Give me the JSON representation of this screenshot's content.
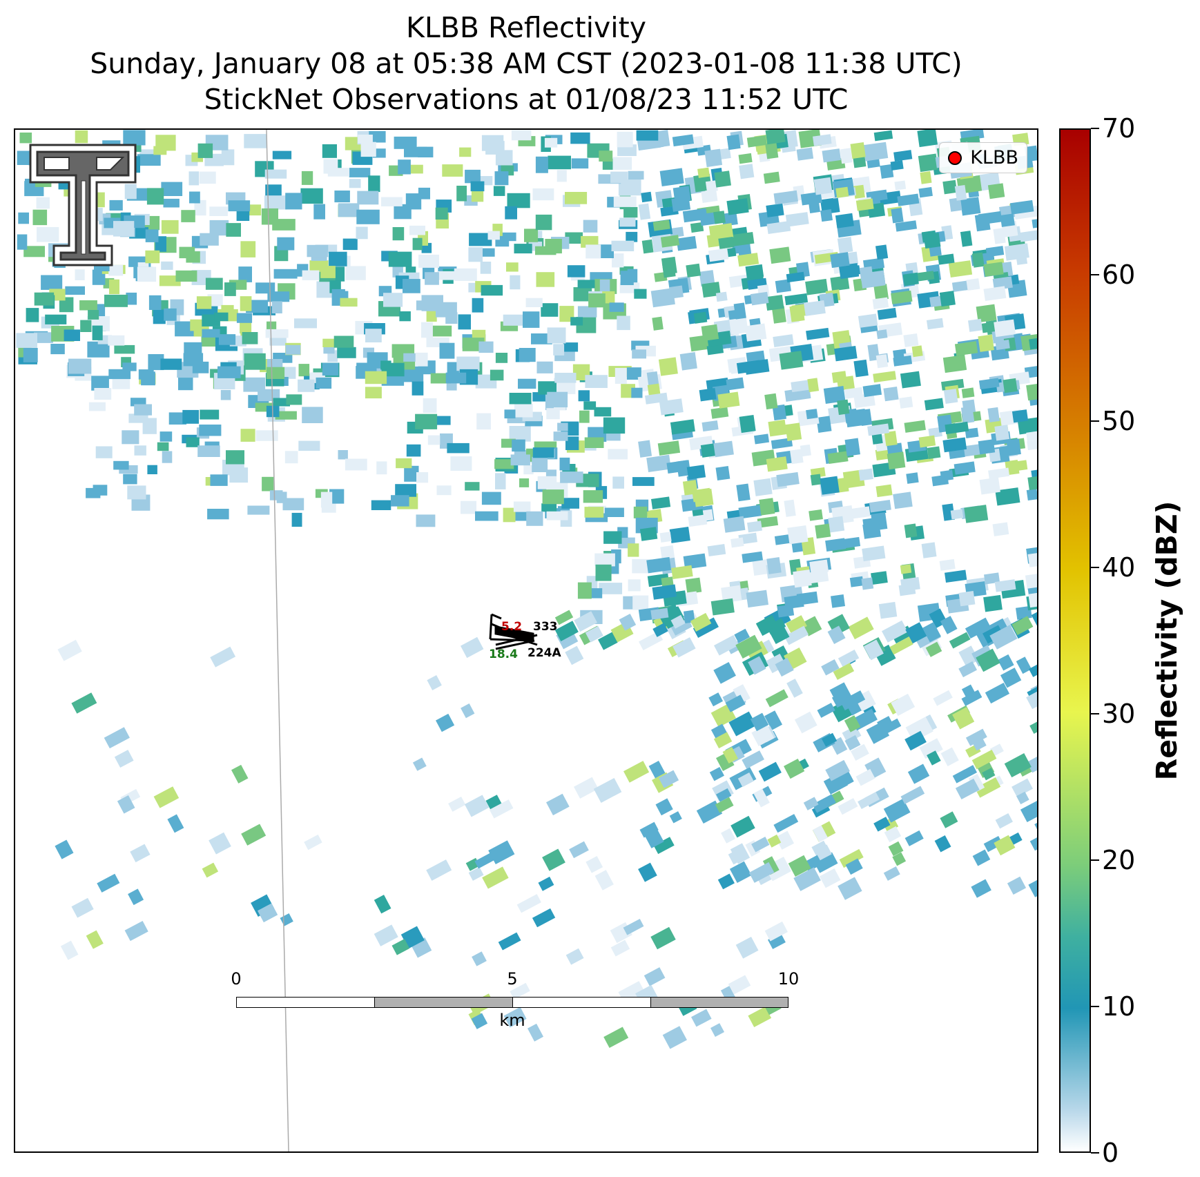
{
  "title": {
    "line1": "KLBB Reflectivity",
    "line2": "Sunday, January 08 at 05:38 AM CST (2023-01-08 11:38 UTC)",
    "line3": "StickNet Observations at 01/08/23 11:52 UTC"
  },
  "legend": {
    "label": "KLBB",
    "marker_color": "#ff0000"
  },
  "logo": {
    "icon": "texas-tech-double-t-logo"
  },
  "stations": [
    {
      "id": "333",
      "value": "5.2",
      "value_color": "#c00000"
    },
    {
      "id": "224A",
      "value": "18.4",
      "value_color": "#1a7a1a"
    }
  ],
  "scalebar": {
    "ticks": [
      "0",
      "5",
      "10"
    ],
    "unit": "km"
  },
  "colorbar": {
    "title": "Reflectivity (dBZ)",
    "min": 0,
    "max": 70,
    "ticks": [
      "0",
      "10",
      "20",
      "30",
      "40",
      "50",
      "60",
      "70"
    ],
    "colors": [
      "#ffffff",
      "#b9d8ea",
      "#2196b5",
      "#3fb0a0",
      "#7ccd7a",
      "#e8f54e",
      "#e2c200",
      "#d67f00",
      "#c83b00",
      "#a80000"
    ]
  }
}
